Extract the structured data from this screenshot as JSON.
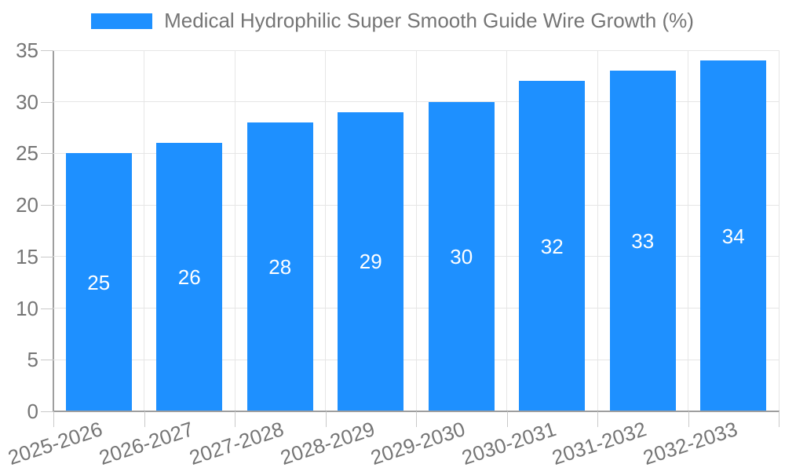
{
  "chart_data": {
    "type": "bar",
    "title": "Medical Hydrophilic Super Smooth Guide Wire Growth (%)",
    "categories": [
      "2025-2026",
      "2026-2027",
      "2027-2028",
      "2028-2029",
      "2029-2030",
      "2030-2031",
      "2031-2032",
      "2032-2033"
    ],
    "series": [
      {
        "name": "Medical Hydrophilic Super Smooth Guide Wire Growth (%)",
        "values": [
          25,
          26,
          28,
          29,
          30,
          32,
          33,
          34
        ]
      }
    ],
    "bar_value_labels": [
      "25",
      "26",
      "28",
      "29",
      "30",
      "32",
      "33",
      "34"
    ],
    "xlabel": "",
    "ylabel": "",
    "ylim": [
      0,
      35
    ],
    "yticks": [
      0,
      5,
      10,
      15,
      20,
      25,
      30,
      35
    ],
    "grid": true,
    "legend_position": "top-center",
    "x_label_rotation_deg": -18,
    "colors": {
      "bar": "#1e90ff",
      "bar_value_text": "#ffffff",
      "axis_text": "#757575",
      "gridline": "#e6e6e6",
      "axis_line": "#9e9e9e",
      "tick": "#c9c9c9",
      "background": "#ffffff"
    }
  }
}
